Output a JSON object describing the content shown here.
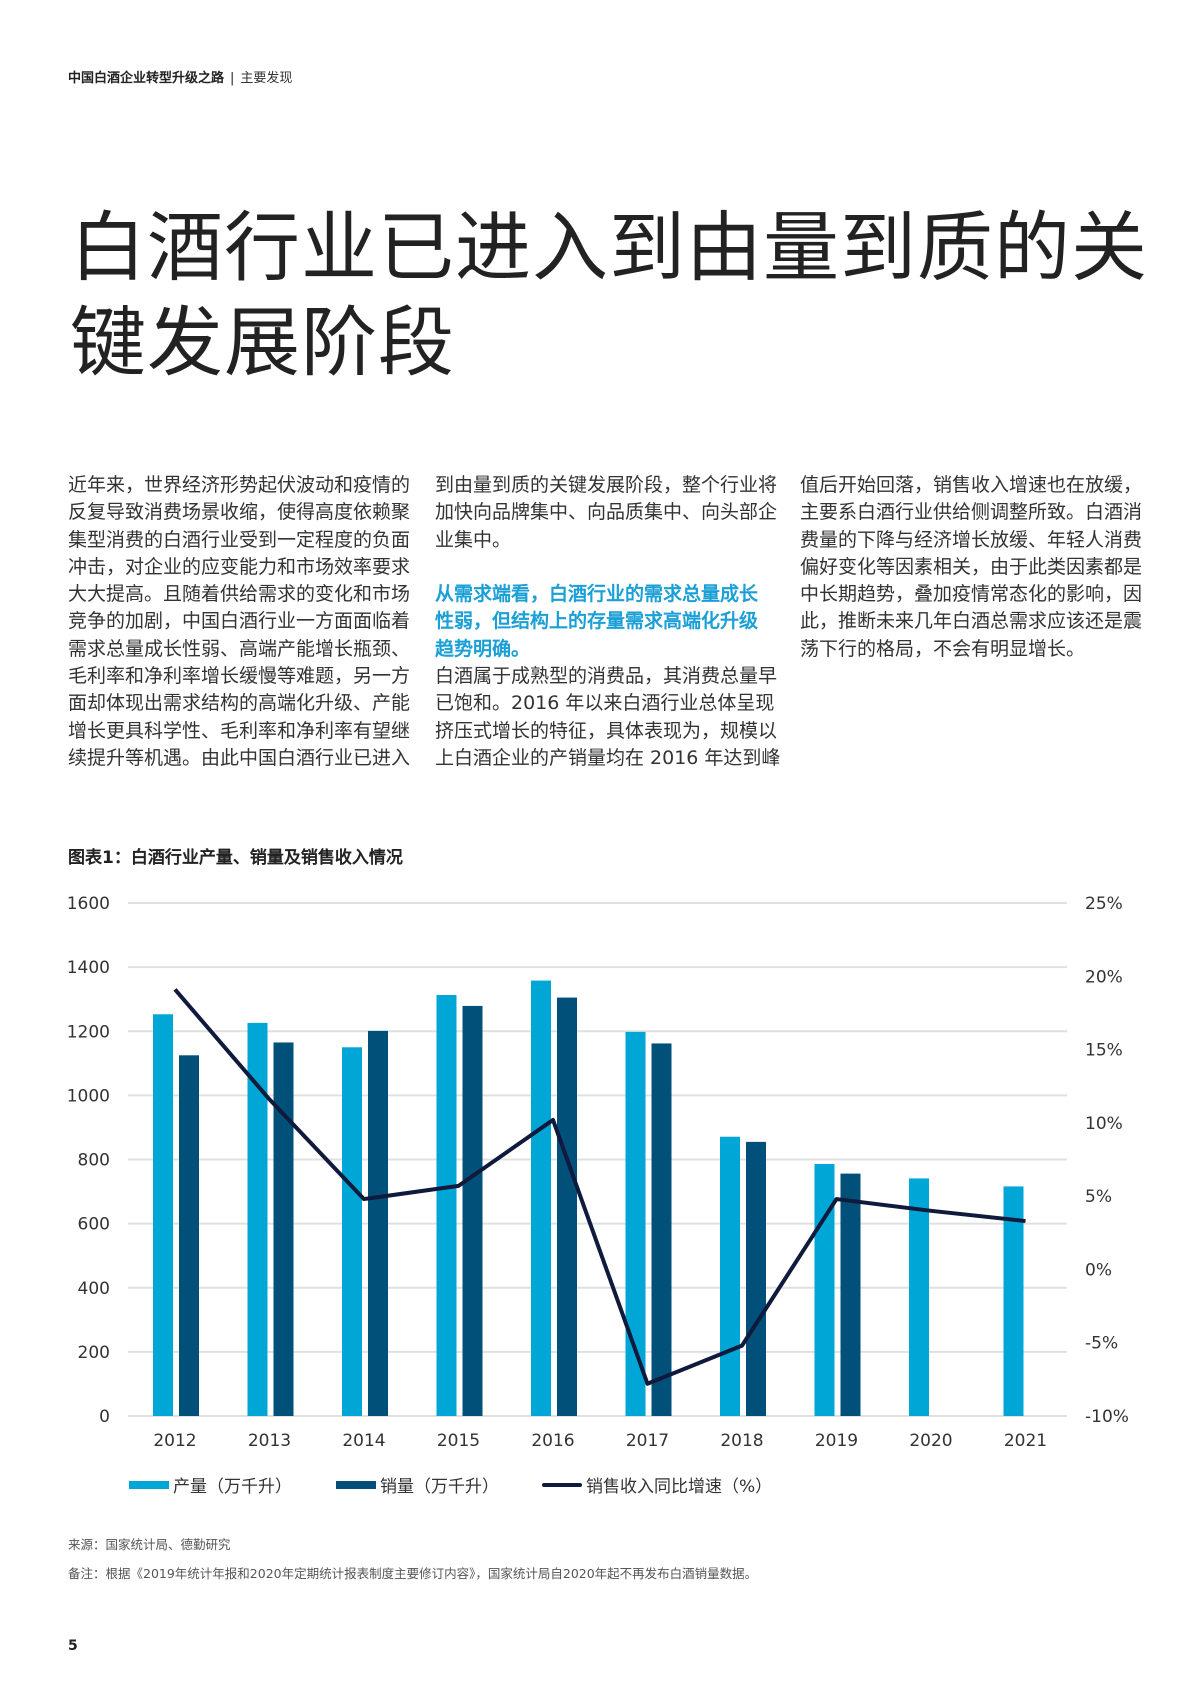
{
  "header": {
    "doc_title": "中国白酒企业转型升级之路",
    "separator": "|",
    "section": "主要发现"
  },
  "title": {
    "line1": "白酒行业已进入到由量到质的关",
    "line2": "键发展阶段"
  },
  "columns": {
    "col1": [
      "近年来，世界经济形势起伏波动和疫情的",
      "反复导致消费场景收缩，使得高度依赖聚",
      "集型消费的白酒行业受到一定程度的负面",
      "冲击，对企业的应变能力和市场效率要求",
      "大大提高。且随着供给需求的变化和市场",
      "竞争的加剧，中国白酒行业一方面面临着",
      "需求总量成长性弱、高端产能增长瓶颈、",
      "毛利率和净利率增长缓慢等难题，另一方",
      "面却体现出需求结构的高端化升级、产能",
      "增长更具科学性、毛利率和净利率有望继",
      "续提升等机遇。由此中国白酒行业已进入"
    ],
    "col2_p1": [
      "到由量到质的关键发展阶段，整个行业将",
      "加快向品牌集中、向品质集中、向头部企",
      "业集中。"
    ],
    "col2_highlight": [
      "从需求端看，白酒行业的需求总量成长",
      "性弱，但结构上的存量需求高端化升级",
      "趋势明确。"
    ],
    "col2_p2": [
      "白酒属于成熟型的消费品，其消费总量早",
      "已饱和。2016 年以来白酒行业总体呈现",
      "挤压式增长的特征，具体表现为，规模以",
      "上白酒企业的产销量均在 2016 年达到峰"
    ],
    "col3": [
      "值后开始回落，销售收入增速也在放缓，",
      "主要系白酒行业供给侧调整所致。白酒消",
      "费量的下降与经济增长放缓、年轻人消费",
      "偏好变化等因素相关，由于此类因素都是",
      "中长期趋势，叠加疫情常态化的影响，因",
      "此，推断未来几年白酒总需求应该还是震",
      "荡下行的格局，不会有明显增长。"
    ]
  },
  "chart_title": "图表1：白酒行业产量、销量及销售收入情况",
  "chart_data": {
    "type": "bar",
    "categories": [
      "2012",
      "2013",
      "2014",
      "2015",
      "2016",
      "2017",
      "2018",
      "2019",
      "2020",
      "2021"
    ],
    "left_axis": {
      "ylim": [
        0,
        1600
      ],
      "ticks": [
        "0",
        "200",
        "400",
        "600",
        "800",
        "1000",
        "1200",
        "1400",
        "1600"
      ]
    },
    "right_axis": {
      "ylim": [
        -10,
        25
      ],
      "ticks": [
        "-10%",
        "-5%",
        "0%",
        "5%",
        "10%",
        "15%",
        "20%",
        "25%"
      ]
    },
    "grid": true,
    "legend_position": "bottom-left",
    "series": [
      {
        "name": "产量（万千升）",
        "type": "bar",
        "axis": "left",
        "color": "#00a6d6",
        "values": [
          1253,
          1226,
          1150,
          1313,
          1358,
          1198,
          871,
          786,
          741,
          716
        ]
      },
      {
        "name": "销量（万千升）",
        "type": "bar",
        "axis": "left",
        "color": "#00507a",
        "values": [
          1125,
          1165,
          1201,
          1279,
          1305,
          1162,
          855,
          756,
          null,
          null
        ]
      },
      {
        "name": "销售收入同比增速（%）",
        "type": "line",
        "axis": "right",
        "color": "#0f1a3c",
        "values": [
          19.1,
          11.6,
          4.8,
          5.7,
          10.2,
          -7.8,
          -5.2,
          4.8,
          4.0,
          3.3
        ]
      }
    ]
  },
  "source": "来源：国家统计局、德勤研究",
  "note": "备注：根据《2019年统计年报和2020年定期统计报表制度主要修订内容》，国家统计局自2020年起不再发布白酒销量数据。",
  "page_number": "5"
}
